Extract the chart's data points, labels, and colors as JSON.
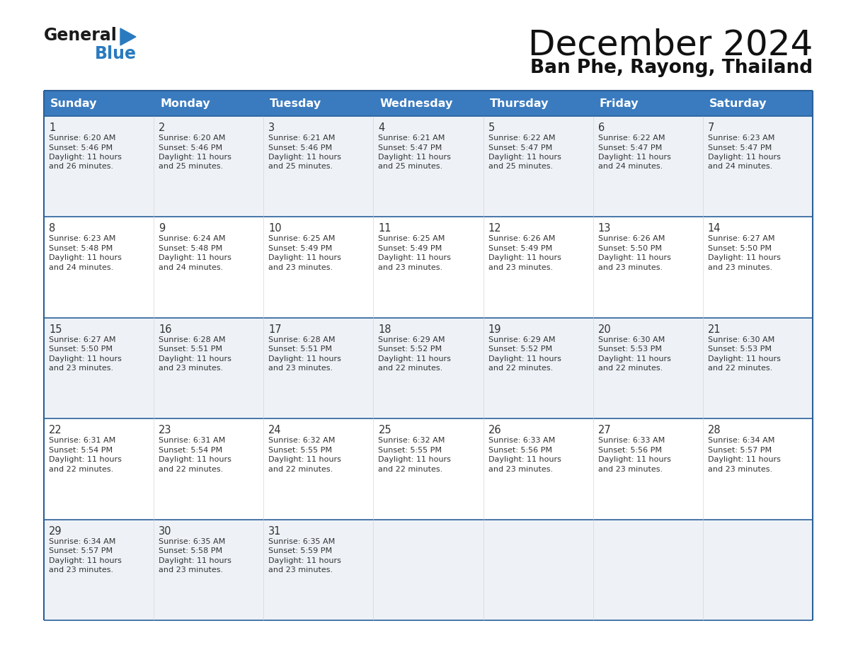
{
  "title": "December 2024",
  "subtitle": "Ban Phe, Rayong, Thailand",
  "days_of_week": [
    "Sunday",
    "Monday",
    "Tuesday",
    "Wednesday",
    "Thursday",
    "Friday",
    "Saturday"
  ],
  "header_bg": "#3a7bbf",
  "header_text": "#ffffff",
  "row_bg_odd": "#eef2f7",
  "row_bg_even": "#ffffff",
  "border_color": "#2a6099",
  "text_color": "#333333",
  "calendar": [
    [
      {
        "day": 1,
        "sunrise": "6:20 AM",
        "sunset": "5:46 PM",
        "and_part": "and 26 minutes."
      },
      {
        "day": 2,
        "sunrise": "6:20 AM",
        "sunset": "5:46 PM",
        "and_part": "and 25 minutes."
      },
      {
        "day": 3,
        "sunrise": "6:21 AM",
        "sunset": "5:46 PM",
        "and_part": "and 25 minutes."
      },
      {
        "day": 4,
        "sunrise": "6:21 AM",
        "sunset": "5:47 PM",
        "and_part": "and 25 minutes."
      },
      {
        "day": 5,
        "sunrise": "6:22 AM",
        "sunset": "5:47 PM",
        "and_part": "and 25 minutes."
      },
      {
        "day": 6,
        "sunrise": "6:22 AM",
        "sunset": "5:47 PM",
        "and_part": "and 24 minutes."
      },
      {
        "day": 7,
        "sunrise": "6:23 AM",
        "sunset": "5:47 PM",
        "and_part": "and 24 minutes."
      }
    ],
    [
      {
        "day": 8,
        "sunrise": "6:23 AM",
        "sunset": "5:48 PM",
        "and_part": "and 24 minutes."
      },
      {
        "day": 9,
        "sunrise": "6:24 AM",
        "sunset": "5:48 PM",
        "and_part": "and 24 minutes."
      },
      {
        "day": 10,
        "sunrise": "6:25 AM",
        "sunset": "5:49 PM",
        "and_part": "and 23 minutes."
      },
      {
        "day": 11,
        "sunrise": "6:25 AM",
        "sunset": "5:49 PM",
        "and_part": "and 23 minutes."
      },
      {
        "day": 12,
        "sunrise": "6:26 AM",
        "sunset": "5:49 PM",
        "and_part": "and 23 minutes."
      },
      {
        "day": 13,
        "sunrise": "6:26 AM",
        "sunset": "5:50 PM",
        "and_part": "and 23 minutes."
      },
      {
        "day": 14,
        "sunrise": "6:27 AM",
        "sunset": "5:50 PM",
        "and_part": "and 23 minutes."
      }
    ],
    [
      {
        "day": 15,
        "sunrise": "6:27 AM",
        "sunset": "5:50 PM",
        "and_part": "and 23 minutes."
      },
      {
        "day": 16,
        "sunrise": "6:28 AM",
        "sunset": "5:51 PM",
        "and_part": "and 23 minutes."
      },
      {
        "day": 17,
        "sunrise": "6:28 AM",
        "sunset": "5:51 PM",
        "and_part": "and 23 minutes."
      },
      {
        "day": 18,
        "sunrise": "6:29 AM",
        "sunset": "5:52 PM",
        "and_part": "and 22 minutes."
      },
      {
        "day": 19,
        "sunrise": "6:29 AM",
        "sunset": "5:52 PM",
        "and_part": "and 22 minutes."
      },
      {
        "day": 20,
        "sunrise": "6:30 AM",
        "sunset": "5:53 PM",
        "and_part": "and 22 minutes."
      },
      {
        "day": 21,
        "sunrise": "6:30 AM",
        "sunset": "5:53 PM",
        "and_part": "and 22 minutes."
      }
    ],
    [
      {
        "day": 22,
        "sunrise": "6:31 AM",
        "sunset": "5:54 PM",
        "and_part": "and 22 minutes."
      },
      {
        "day": 23,
        "sunrise": "6:31 AM",
        "sunset": "5:54 PM",
        "and_part": "and 22 minutes."
      },
      {
        "day": 24,
        "sunrise": "6:32 AM",
        "sunset": "5:55 PM",
        "and_part": "and 22 minutes."
      },
      {
        "day": 25,
        "sunrise": "6:32 AM",
        "sunset": "5:55 PM",
        "and_part": "and 22 minutes."
      },
      {
        "day": 26,
        "sunrise": "6:33 AM",
        "sunset": "5:56 PM",
        "and_part": "and 23 minutes."
      },
      {
        "day": 27,
        "sunrise": "6:33 AM",
        "sunset": "5:56 PM",
        "and_part": "and 23 minutes."
      },
      {
        "day": 28,
        "sunrise": "6:34 AM",
        "sunset": "5:57 PM",
        "and_part": "and 23 minutes."
      }
    ],
    [
      {
        "day": 29,
        "sunrise": "6:34 AM",
        "sunset": "5:57 PM",
        "and_part": "and 23 minutes."
      },
      {
        "day": 30,
        "sunrise": "6:35 AM",
        "sunset": "5:58 PM",
        "and_part": "and 23 minutes."
      },
      {
        "day": 31,
        "sunrise": "6:35 AM",
        "sunset": "5:59 PM",
        "and_part": "and 23 minutes."
      },
      null,
      null,
      null,
      null
    ]
  ],
  "logo_general_color": "#1a1a1a",
  "logo_blue_color": "#2a7abf",
  "logo_triangle_color": "#2a7abf",
  "title_fontsize": 36,
  "subtitle_fontsize": 19,
  "header_fontsize": 11.5,
  "day_num_fontsize": 10.5,
  "cell_text_fontsize": 8.0
}
